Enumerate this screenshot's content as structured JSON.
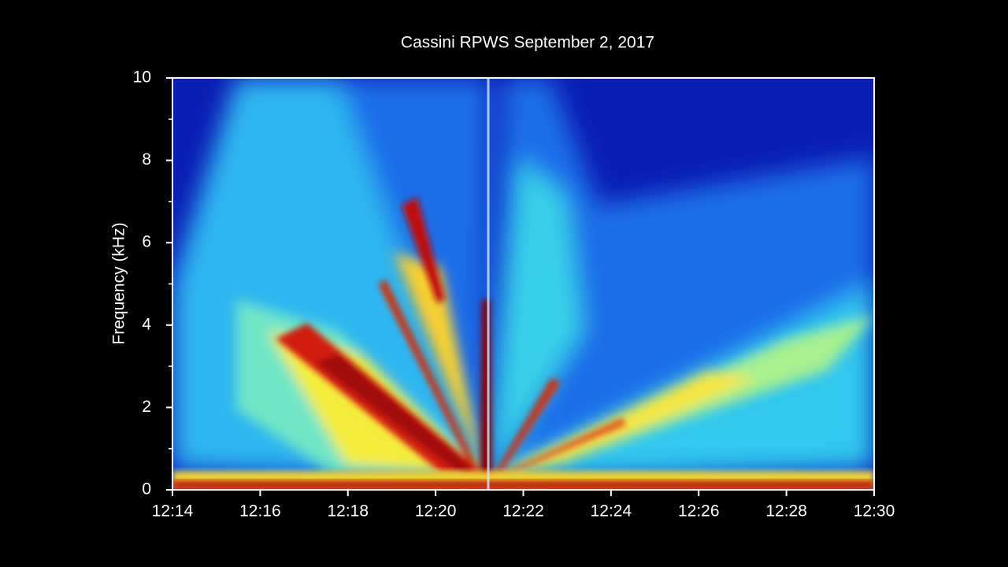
{
  "chart_data": {
    "type": "spectrogram",
    "title": "Cassini RPWS September 2, 2017",
    "ylabel": "Frequency (kHz)",
    "ylim": [
      0,
      10
    ],
    "yticks": [
      0,
      2,
      4,
      6,
      8,
      10
    ],
    "xticks": [
      "12:14",
      "12:16",
      "12:18",
      "12:20",
      "12:22",
      "12:24",
      "12:26",
      "12:28",
      "12:30"
    ]
  }
}
